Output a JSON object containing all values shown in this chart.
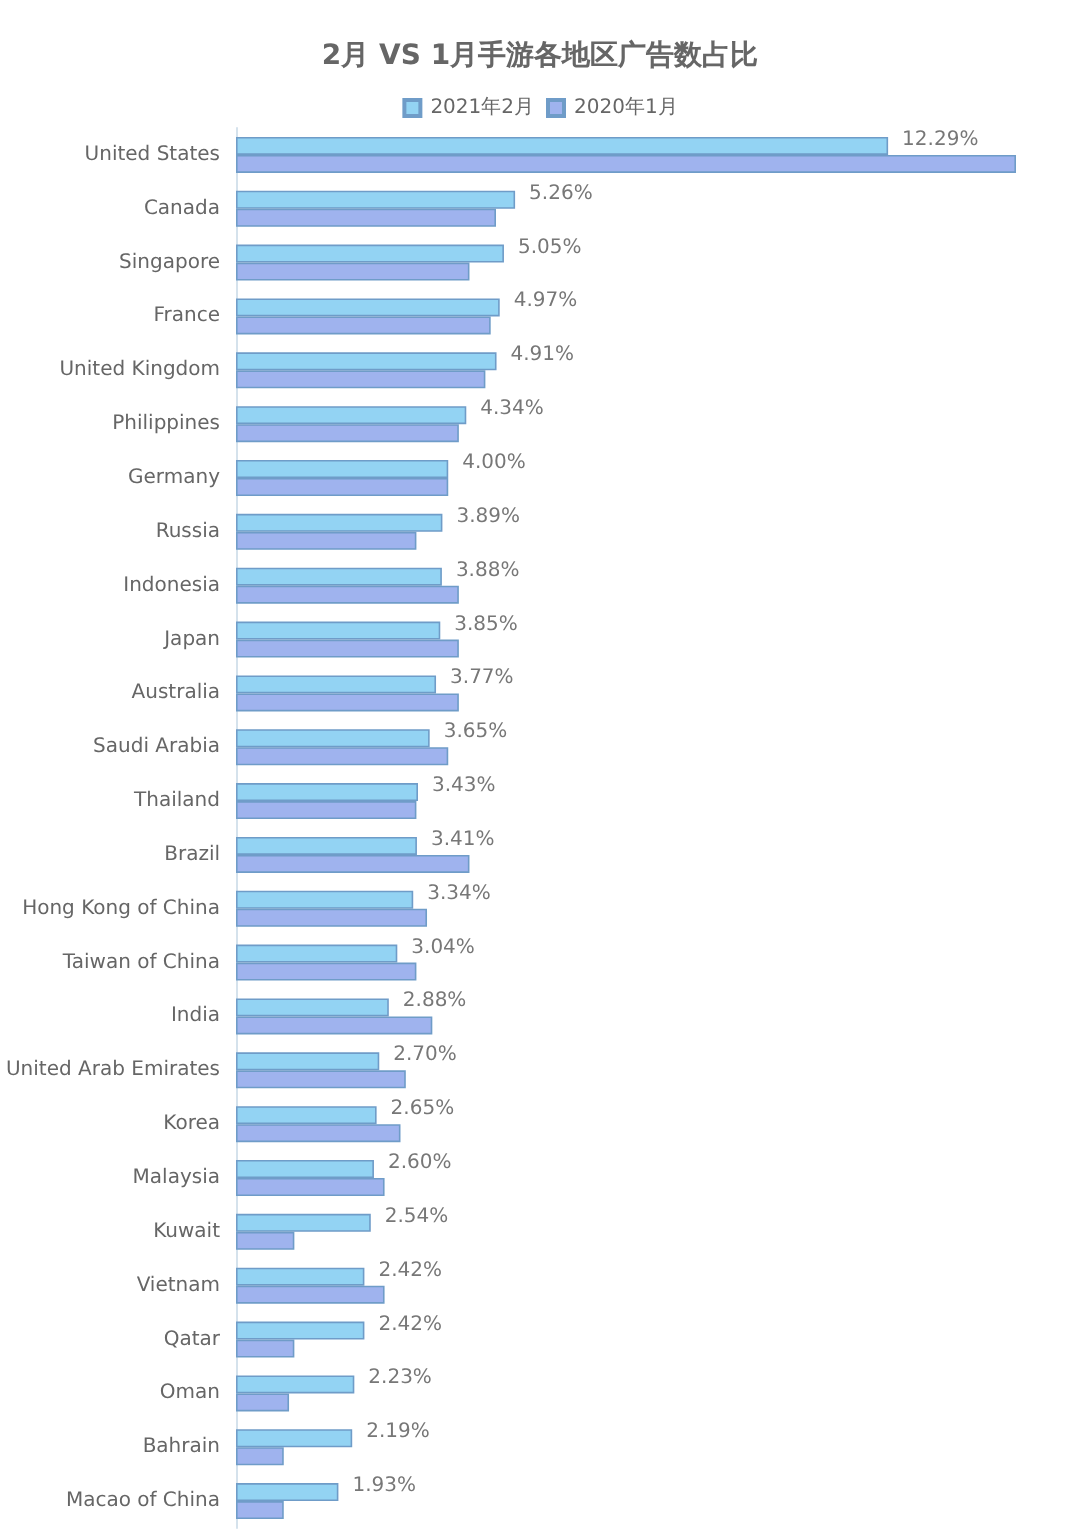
{
  "chart_data": {
    "type": "bar",
    "orientation": "horizontal",
    "title": "2月 VS 1月手游各地区广告数占比",
    "legend": "top",
    "grid": false,
    "categories": [
      "United States",
      "Canada",
      "Singapore",
      "France",
      "United Kingdom",
      "Philippines",
      "Germany",
      "Russia",
      "Indonesia",
      "Japan",
      "Australia",
      "Saudi Arabia",
      "Thailand",
      "Brazil",
      "Hong Kong of China",
      "Taiwan of China",
      "India",
      "United Arab Emirates",
      "Korea",
      "Malaysia",
      "Kuwait",
      "Vietnam",
      "Qatar",
      "Oman",
      "Bahrain",
      "Macao of China"
    ],
    "series": [
      {
        "name": "2021年2月",
        "color": "#93d3f3",
        "values": [
          12.29,
          5.26,
          5.05,
          4.97,
          4.91,
          4.34,
          4.0,
          3.89,
          3.88,
          3.85,
          3.77,
          3.65,
          3.43,
          3.41,
          3.34,
          3.04,
          2.88,
          2.7,
          2.65,
          2.6,
          2.54,
          2.42,
          2.42,
          2.23,
          2.19,
          1.93
        ],
        "value_labels": [
          "12.29%",
          "5.26%",
          "5.05%",
          "4.97%",
          "4.91%",
          "4.34%",
          "4.00%",
          "3.89%",
          "3.88%",
          "3.85%",
          "3.77%",
          "3.65%",
          "3.43%",
          "3.41%",
          "3.34%",
          "3.04%",
          "2.88%",
          "2.70%",
          "2.65%",
          "2.60%",
          "2.54%",
          "2.42%",
          "2.42%",
          "2.23%",
          "2.19%",
          "1.93%"
        ]
      },
      {
        "name": "2020年1月",
        "color": "#9fb3ee",
        "values": [
          14.7,
          4.9,
          4.4,
          4.8,
          4.7,
          4.2,
          4.0,
          3.4,
          4.2,
          4.2,
          4.2,
          4.0,
          3.4,
          4.4,
          3.6,
          3.4,
          3.7,
          3.2,
          3.1,
          2.8,
          1.1,
          2.8,
          1.1,
          1.0,
          0.9,
          0.9
        ]
      }
    ]
  }
}
